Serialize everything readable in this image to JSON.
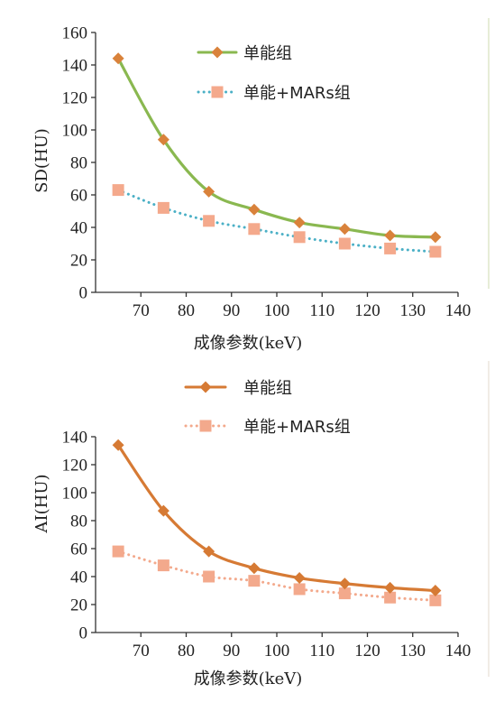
{
  "chart_data": [
    {
      "type": "line",
      "ylabel": "SD(HU)",
      "xlabel": "成像参数(keV)",
      "xlim": [
        60,
        140
      ],
      "ylim": [
        0,
        160
      ],
      "xticks": [
        70,
        80,
        90,
        100,
        110,
        120,
        130,
        140
      ],
      "yticks": [
        0,
        20,
        40,
        60,
        80,
        100,
        120,
        140,
        160
      ],
      "x": [
        65,
        75,
        85,
        95,
        105,
        115,
        125,
        135
      ],
      "legend_position": "top-right",
      "grid": false,
      "series": [
        {
          "name": "单能组",
          "values": [
            144,
            94,
            62,
            51,
            43,
            39,
            35,
            34
          ],
          "color": "#8ab850",
          "marker_color": "#d9823b",
          "marker": "diamond",
          "line": "solid"
        },
        {
          "name": "单能+MARs组",
          "values": [
            63,
            52,
            44,
            39,
            34,
            30,
            27,
            25
          ],
          "color": "#4bb0c6",
          "marker_color": "#f4a98c",
          "marker": "square",
          "line": "dotted"
        }
      ]
    },
    {
      "type": "line",
      "ylabel": "AI(HU)",
      "xlabel": "成像参数(keV)",
      "xlim": [
        60,
        140
      ],
      "ylim": [
        0,
        140
      ],
      "xticks": [
        70,
        80,
        90,
        100,
        110,
        120,
        130,
        140
      ],
      "yticks": [
        0,
        20,
        40,
        60,
        80,
        100,
        120,
        140
      ],
      "x": [
        65,
        75,
        85,
        95,
        105,
        115,
        125,
        135
      ],
      "legend_position": "top-right",
      "grid": false,
      "series": [
        {
          "name": "单能组",
          "values": [
            134,
            87,
            58,
            46,
            39,
            35,
            32,
            30
          ],
          "color": "#d67a34",
          "marker_color": "#d67a34",
          "marker": "diamond",
          "line": "solid"
        },
        {
          "name": "单能+MARs组",
          "values": [
            58,
            48,
            40,
            37,
            31,
            28,
            25,
            23
          ],
          "color": "#f3a98c",
          "marker_color": "#f3a98c",
          "marker": "square",
          "line": "dotted"
        }
      ]
    }
  ]
}
